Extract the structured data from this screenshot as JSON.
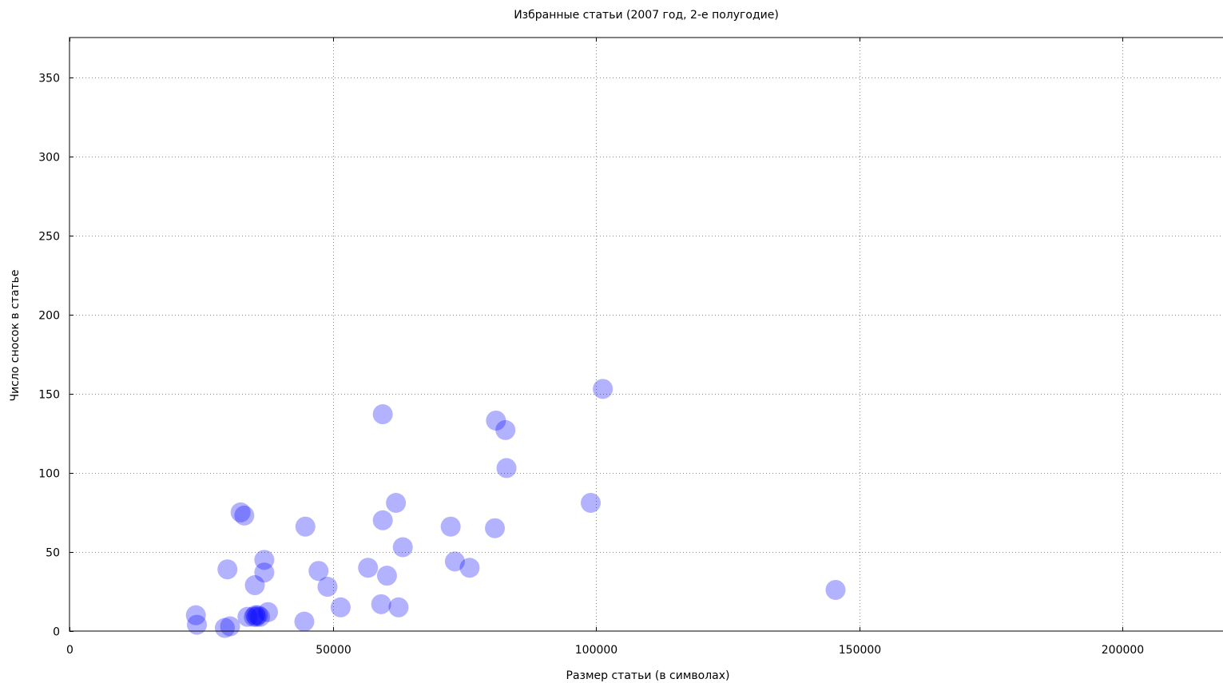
{
  "chart_data": {
    "type": "scatter",
    "title": "Избранные статьи (2007 год, 2-е полугодие)",
    "xlabel": "Размер статьи (в символах)",
    "ylabel": "Число сносок в статье",
    "xlim": [
      0,
      220000
    ],
    "ylim": [
      0,
      375
    ],
    "xticks": [
      0,
      50000,
      100000,
      150000,
      200000
    ],
    "yticks": [
      0,
      50,
      100,
      150,
      200,
      250,
      300,
      350
    ],
    "grid": true,
    "point_color": "#0000ff",
    "point_opacity": 0.3,
    "points": [
      {
        "x": 24000,
        "y": 10
      },
      {
        "x": 24200,
        "y": 4
      },
      {
        "x": 29500,
        "y": 2
      },
      {
        "x": 30500,
        "y": 3
      },
      {
        "x": 30000,
        "y": 39
      },
      {
        "x": 32500,
        "y": 75
      },
      {
        "x": 33200,
        "y": 73
      },
      {
        "x": 33800,
        "y": 9
      },
      {
        "x": 35000,
        "y": 9
      },
      {
        "x": 35300,
        "y": 10
      },
      {
        "x": 35500,
        "y": 9
      },
      {
        "x": 35800,
        "y": 10
      },
      {
        "x": 36200,
        "y": 9
      },
      {
        "x": 35200,
        "y": 29
      },
      {
        "x": 37000,
        "y": 45
      },
      {
        "x": 37000,
        "y": 37
      },
      {
        "x": 37700,
        "y": 12
      },
      {
        "x": 44600,
        "y": 6
      },
      {
        "x": 44800,
        "y": 66
      },
      {
        "x": 47300,
        "y": 38
      },
      {
        "x": 49000,
        "y": 28
      },
      {
        "x": 51500,
        "y": 15
      },
      {
        "x": 56700,
        "y": 40
      },
      {
        "x": 59200,
        "y": 17
      },
      {
        "x": 59500,
        "y": 137
      },
      {
        "x": 59500,
        "y": 70
      },
      {
        "x": 60300,
        "y": 35
      },
      {
        "x": 62000,
        "y": 81
      },
      {
        "x": 62500,
        "y": 15
      },
      {
        "x": 63300,
        "y": 53
      },
      {
        "x": 72400,
        "y": 66
      },
      {
        "x": 73200,
        "y": 44
      },
      {
        "x": 76000,
        "y": 40
      },
      {
        "x": 80800,
        "y": 65
      },
      {
        "x": 81000,
        "y": 133
      },
      {
        "x": 82800,
        "y": 127
      },
      {
        "x": 83000,
        "y": 103
      },
      {
        "x": 99000,
        "y": 81
      },
      {
        "x": 101300,
        "y": 153
      },
      {
        "x": 145500,
        "y": 26
      }
    ]
  }
}
